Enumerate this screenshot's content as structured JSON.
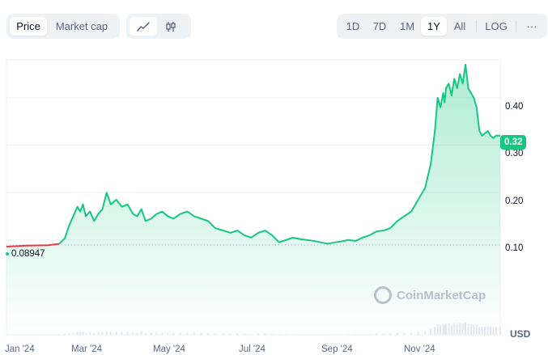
{
  "toolbar": {
    "metric_tabs": [
      {
        "label": "Price",
        "active": true
      },
      {
        "label": "Market cap",
        "active": false
      }
    ],
    "chart_type_icons": [
      "line-chart-icon",
      "candlestick-icon"
    ],
    "ranges": [
      "1D",
      "7D",
      "1M",
      "1Y",
      "All"
    ],
    "active_range": "1Y",
    "log_label": "LOG",
    "more_label": "···"
  },
  "chart": {
    "start_label": "0.08947",
    "current_price_label": "0.32",
    "currency_label": "USD",
    "watermark": "CoinMarketCap",
    "colors": {
      "up": "#16c784",
      "down": "#ea3943",
      "grid": "#eff2f5"
    }
  },
  "chart_data": {
    "type": "line",
    "title": "",
    "xlabel": "",
    "ylabel": "",
    "y_ticks": [
      "0.40",
      "0.30",
      "0.20",
      "0.10"
    ],
    "x_ticks": [
      "Jan '24",
      "Mar '24",
      "May '24",
      "Jul '24",
      "Sep '24",
      "Nov '24"
    ],
    "ylim": [
      -0.1,
      0.48
    ],
    "baseline": 0.08947,
    "grid": true,
    "series": [
      {
        "x": [
          "2024-01-01",
          "2024-01-15",
          "2024-01-31",
          "2024-02-08",
          "2024-02-12",
          "2024-02-15",
          "2024-02-18",
          "2024-02-21",
          "2024-02-23",
          "2024-02-25",
          "2024-02-27",
          "2024-03-01",
          "2024-03-04",
          "2024-03-07",
          "2024-03-10",
          "2024-03-13",
          "2024-03-16",
          "2024-03-20",
          "2024-03-24",
          "2024-03-28",
          "2024-04-01",
          "2024-04-04",
          "2024-04-07",
          "2024-04-10",
          "2024-04-14",
          "2024-04-18",
          "2024-04-22",
          "2024-04-26",
          "2024-04-30",
          "2024-05-05",
          "2024-05-10",
          "2024-05-15",
          "2024-05-20",
          "2024-05-25",
          "2024-05-30",
          "2024-06-05",
          "2024-06-10",
          "2024-06-15",
          "2024-06-20",
          "2024-06-25",
          "2024-06-30",
          "2024-07-05",
          "2024-07-10",
          "2024-07-15",
          "2024-07-20",
          "2024-07-25",
          "2024-07-30",
          "2024-08-04",
          "2024-08-09",
          "2024-08-14",
          "2024-08-19",
          "2024-08-24",
          "2024-08-29",
          "2024-09-03",
          "2024-09-08",
          "2024-09-13",
          "2024-09-18",
          "2024-09-23",
          "2024-09-28",
          "2024-10-03",
          "2024-10-08",
          "2024-10-13",
          "2024-10-18",
          "2024-10-23",
          "2024-10-28",
          "2024-11-01",
          "2024-11-04",
          "2024-11-06",
          "2024-11-08",
          "2024-11-10",
          "2024-11-11",
          "2024-11-12",
          "2024-11-14",
          "2024-11-16",
          "2024-11-18",
          "2024-11-20",
          "2024-11-22",
          "2024-11-24",
          "2024-11-26",
          "2024-11-28",
          "2024-11-30",
          "2024-12-02",
          "2024-12-04",
          "2024-12-06",
          "2024-12-08",
          "2024-12-10",
          "2024-12-12",
          "2024-12-14",
          "2024-12-16",
          "2024-12-18",
          "2024-12-21"
        ],
        "y": [
          0.086,
          0.088,
          0.089,
          0.092,
          0.104,
          0.13,
          0.15,
          0.17,
          0.16,
          0.175,
          0.15,
          0.16,
          0.14,
          0.155,
          0.165,
          0.2,
          0.175,
          0.185,
          0.17,
          0.175,
          0.155,
          0.15,
          0.165,
          0.14,
          0.145,
          0.155,
          0.16,
          0.15,
          0.145,
          0.155,
          0.16,
          0.15,
          0.145,
          0.14,
          0.125,
          0.12,
          0.115,
          0.12,
          0.11,
          0.105,
          0.115,
          0.12,
          0.11,
          0.095,
          0.1,
          0.105,
          0.102,
          0.1,
          0.098,
          0.095,
          0.092,
          0.095,
          0.097,
          0.1,
          0.098,
          0.105,
          0.11,
          0.118,
          0.12,
          0.125,
          0.14,
          0.15,
          0.16,
          0.185,
          0.21,
          0.26,
          0.33,
          0.4,
          0.38,
          0.41,
          0.39,
          0.42,
          0.43,
          0.405,
          0.44,
          0.42,
          0.45,
          0.43,
          0.47,
          0.42,
          0.41,
          0.4,
          0.38,
          0.33,
          0.32,
          0.325,
          0.33,
          0.32,
          0.315,
          0.32,
          0.32
        ],
        "color": "#16c784"
      }
    ]
  }
}
